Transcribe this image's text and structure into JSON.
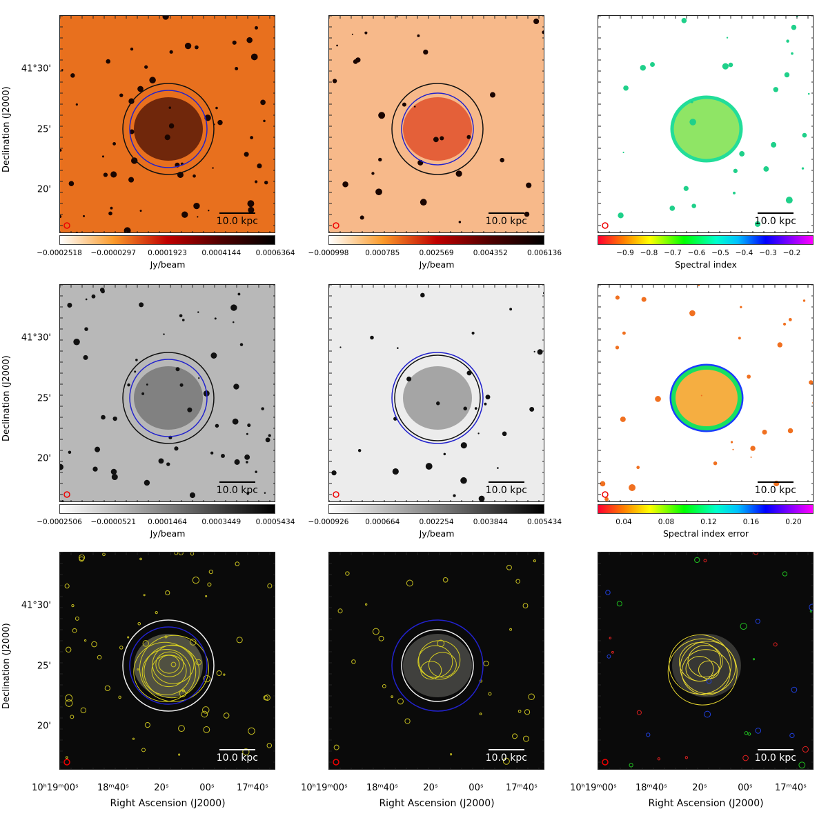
{
  "scale_bar": "10.0 kpc",
  "ylabel": "Declination (J2000)",
  "xlabel": "Right Ascension (J2000)",
  "yticks": [
    "41°30'",
    "25'",
    "20'"
  ],
  "xticks": [
    "10ʰ19ᵐ00ˢ",
    "18ᵐ40ˢ",
    "20ˢ",
    "00ˢ",
    "17ᵐ40ˢ"
  ],
  "panels": [
    {
      "id": "r1c1",
      "kind": "radio-heat-noisy",
      "circles": [
        "#111",
        "#2222cc"
      ]
    },
    {
      "id": "r1c2",
      "kind": "radio-heat-smooth",
      "circles": [
        "#111",
        "#2222cc"
      ]
    },
    {
      "id": "r1c3",
      "kind": "spectral-index",
      "circles": []
    },
    {
      "id": "r2c1",
      "kind": "radio-gray-noisy",
      "circles": [
        "#111",
        "#2222cc"
      ]
    },
    {
      "id": "r2c2",
      "kind": "radio-gray-smooth",
      "circles": [
        "#2222cc",
        "#111"
      ]
    },
    {
      "id": "r2c3",
      "kind": "spectral-index-error",
      "circles": []
    },
    {
      "id": "r3c1",
      "kind": "optical-contours-noisy",
      "circles": [
        "#eee",
        "#2222cc"
      ]
    },
    {
      "id": "r3c2",
      "kind": "optical-contours-smooth",
      "circles": [
        "#2222cc",
        "#eee"
      ]
    },
    {
      "id": "r3c3",
      "kind": "optical-spectral-contours",
      "circles": []
    }
  ],
  "colorbars": [
    {
      "label": "Jy/beam",
      "ticks": [
        "−0.0002518",
        "−0.0000297",
        "0.0001923",
        "0.0004144",
        "0.0006364"
      ],
      "colormap": "gist_heat_r"
    },
    {
      "label": "Jy/beam",
      "ticks": [
        "−0.000998",
        "0.000785",
        "0.002569",
        "0.004352",
        "0.006136"
      ],
      "colormap": "gist_heat_r"
    },
    {
      "label": "Spectral index",
      "ticks": [
        "−0.9",
        "−0.8",
        "−0.7",
        "−0.6",
        "−0.5",
        "−0.4",
        "−0.3",
        "−0.2"
      ],
      "colormap": "gist_rainbow"
    },
    {
      "label": "Jy/beam",
      "ticks": [
        "−0.0002506",
        "−0.0000521",
        "0.0001464",
        "0.0003449",
        "0.0005434"
      ],
      "colormap": "gray_r"
    },
    {
      "label": "Jy/beam",
      "ticks": [
        "−0.000926",
        "0.000664",
        "0.002254",
        "0.003844",
        "0.005434"
      ],
      "colormap": "gray_r"
    },
    {
      "label": "Spectral index error",
      "ticks": [
        "0.04",
        "0.08",
        "0.12",
        "0.16",
        "0.20"
      ],
      "colormap": "gist_rainbow"
    }
  ]
}
